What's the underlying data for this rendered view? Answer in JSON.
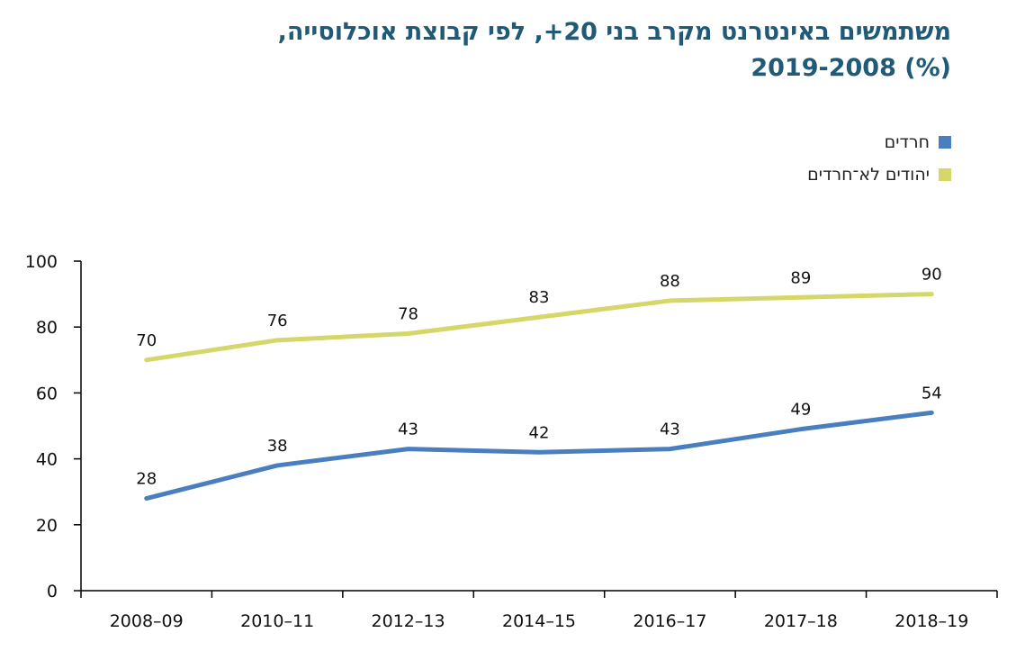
{
  "title_line1": "משתמשים באינטרנט מקרב בני 20+, לפי קבוצת אוכלוסייה,",
  "title_line2": "2019-2008 (%)",
  "chart_data": {
    "type": "line",
    "title": "משתמשים באינטרנט מקרב בני 20+, לפי קבוצת אוכלוסייה, 2019-2008 (%)",
    "categories": [
      "2008–09",
      "2010–11",
      "2012–13",
      "2014–15",
      "2016–17",
      "2017–18",
      "2018–19"
    ],
    "yticks": [
      "0",
      "20",
      "40",
      "60",
      "80",
      "100"
    ],
    "ylim": [
      0,
      100
    ],
    "grid": false,
    "legend_position": "top-right",
    "series": [
      {
        "name": "חרדים",
        "color": "#4a7fbf",
        "values": [
          28,
          38,
          43,
          42,
          43,
          49,
          54
        ]
      },
      {
        "name": "יהודים לא־חרדים",
        "color": "#d4d86a",
        "values": [
          70,
          76,
          78,
          83,
          88,
          89,
          90
        ]
      }
    ]
  }
}
